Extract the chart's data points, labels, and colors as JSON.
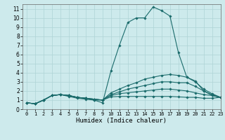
{
  "xlabel": "Humidex (Indice chaleur)",
  "background_color": "#cdeaec",
  "grid_color": "#aed4d6",
  "line_color": "#1a6b6b",
  "xlim": [
    -0.5,
    23
  ],
  "ylim": [
    0,
    11.5
  ],
  "xticks": [
    0,
    1,
    2,
    3,
    4,
    5,
    6,
    7,
    8,
    9,
    10,
    11,
    12,
    13,
    14,
    15,
    16,
    17,
    18,
    19,
    20,
    21,
    22,
    23
  ],
  "yticks": [
    0,
    1,
    2,
    3,
    4,
    5,
    6,
    7,
    8,
    9,
    10,
    11
  ],
  "series": [
    [
      0.7,
      0.6,
      1.0,
      1.5,
      1.6,
      1.4,
      1.2,
      1.1,
      1.0,
      0.7,
      4.2,
      7.0,
      9.5,
      10.0,
      10.0,
      11.2,
      10.8,
      10.2,
      6.2,
      3.5,
      3.1,
      2.0,
      1.5,
      1.3
    ],
    [
      0.7,
      0.6,
      1.0,
      1.5,
      1.6,
      1.5,
      1.3,
      1.2,
      1.1,
      1.0,
      1.35,
      1.4,
      1.4,
      1.4,
      1.4,
      1.4,
      1.4,
      1.4,
      1.35,
      1.3,
      1.3,
      1.2,
      1.2,
      1.3
    ],
    [
      0.7,
      0.6,
      1.0,
      1.5,
      1.6,
      1.5,
      1.3,
      1.2,
      1.1,
      1.0,
      1.5,
      1.7,
      1.8,
      1.9,
      2.0,
      2.1,
      2.2,
      2.2,
      2.1,
      2.0,
      1.8,
      1.6,
      1.5,
      1.3
    ],
    [
      0.7,
      0.6,
      1.0,
      1.5,
      1.6,
      1.5,
      1.3,
      1.2,
      1.1,
      1.0,
      1.6,
      1.9,
      2.2,
      2.4,
      2.6,
      2.8,
      3.0,
      3.0,
      2.9,
      2.9,
      2.5,
      2.0,
      1.6,
      1.3
    ],
    [
      0.7,
      0.6,
      1.0,
      1.5,
      1.6,
      1.5,
      1.3,
      1.2,
      1.0,
      1.0,
      1.8,
      2.2,
      2.6,
      2.9,
      3.3,
      3.5,
      3.7,
      3.8,
      3.7,
      3.5,
      3.0,
      2.2,
      1.7,
      1.3
    ]
  ]
}
